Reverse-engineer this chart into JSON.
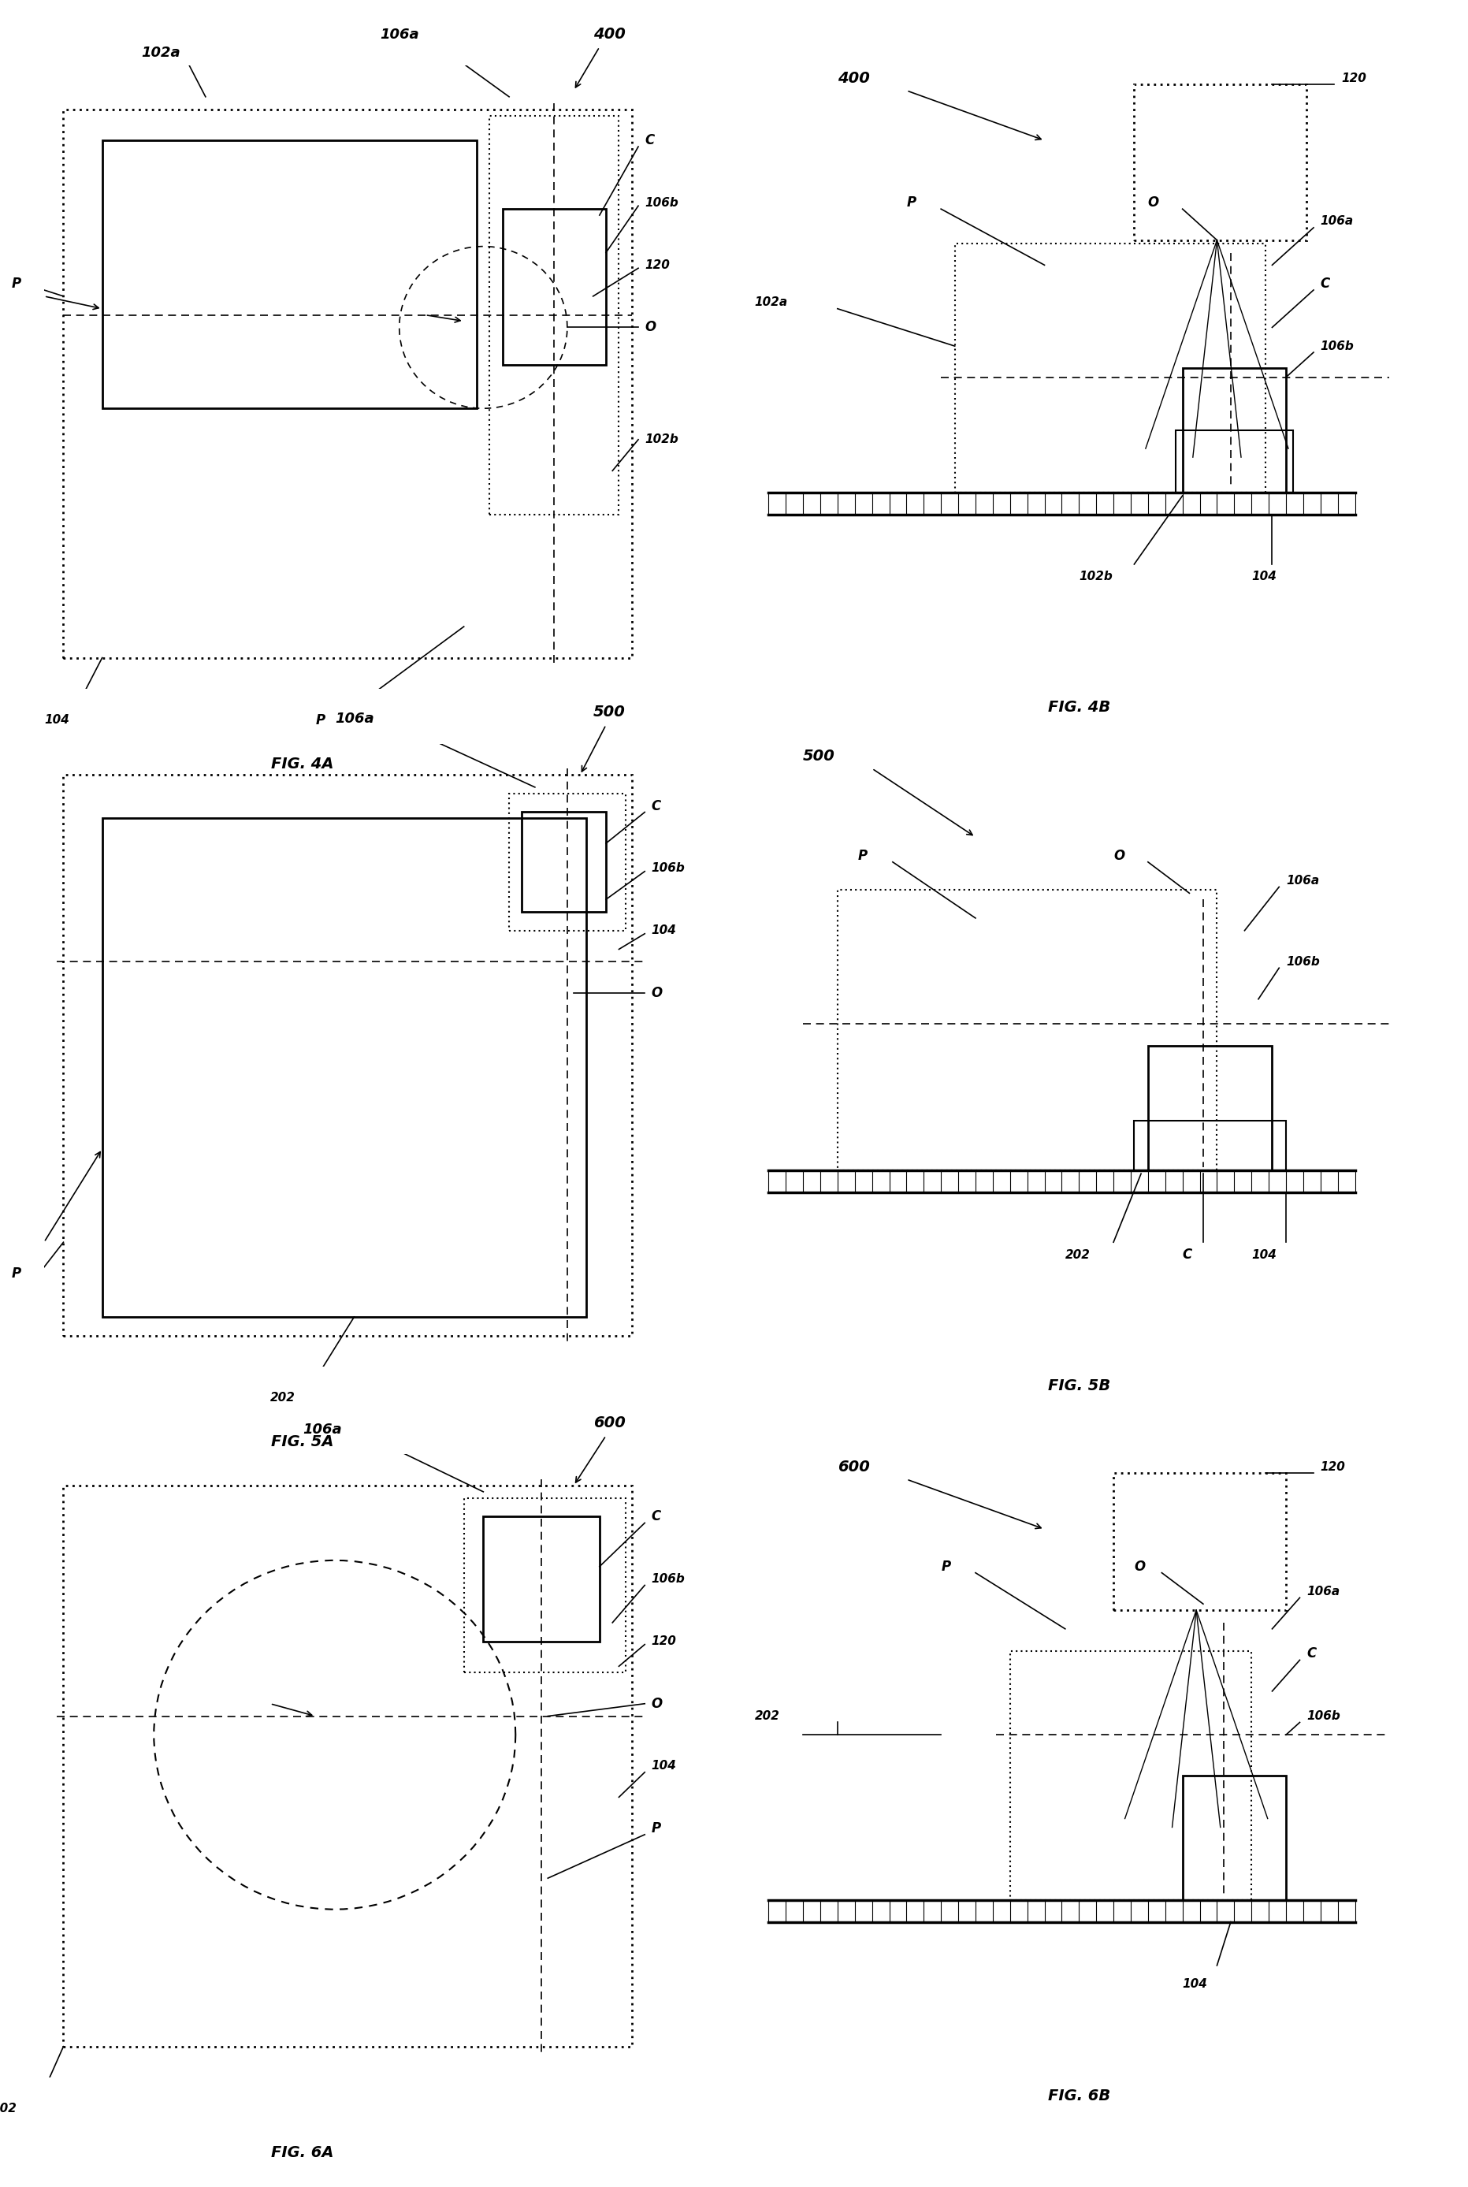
{
  "bg_color": "#ffffff",
  "lc": "#000000",
  "fig_labels": [
    "FIG. 4A",
    "FIG. 4B",
    "FIG. 5A",
    "FIG. 5B",
    "FIG. 6A",
    "FIG. 6B"
  ],
  "fs_ref": 11,
  "fs_fig": 14,
  "fs_num": 13
}
